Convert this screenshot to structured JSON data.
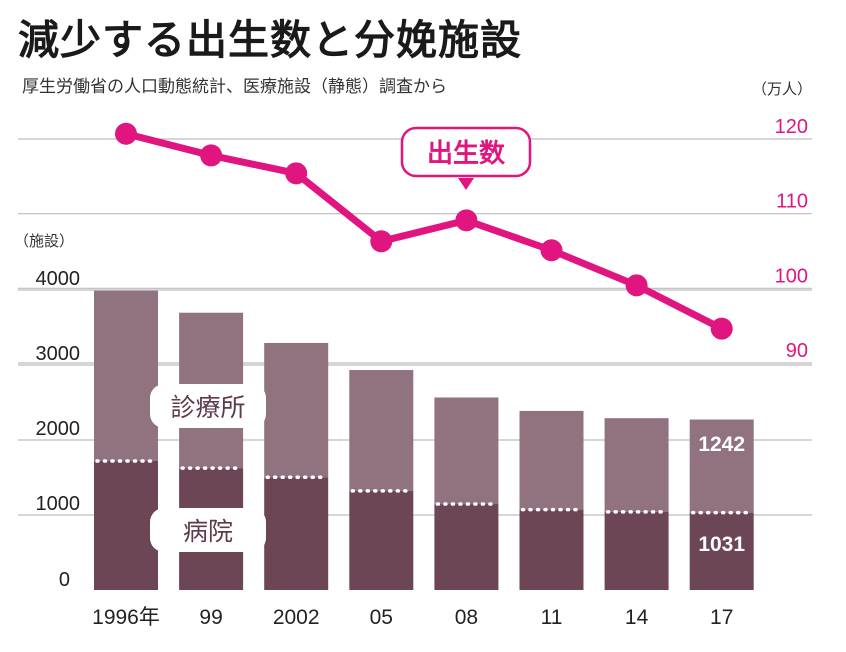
{
  "title": "減少する出生数と分娩施設",
  "subtitle": "厚生労働省の人口動態統計、医療施設（静態）調査から",
  "colors": {
    "clinic": "#91727f",
    "hospital": "#6d4656",
    "births": "#e0157f",
    "grid": "#bdbdbd"
  },
  "chart_data": [
    {
      "type": "bar",
      "stacked": true,
      "ylabel": "（施設）",
      "ylim": [
        0,
        4000
      ],
      "yticks": [
        "0",
        "1000",
        "2000",
        "3000",
        "4000"
      ],
      "categories": [
        "1996年",
        "99",
        "2002",
        "05",
        "08",
        "11",
        "14",
        "17"
      ],
      "series": [
        {
          "name": "病院",
          "values": [
            1720,
            1625,
            1503,
            1321,
            1146,
            1072,
            1041,
            1031
          ]
        },
        {
          "name": "診療所",
          "values": [
            2271,
            2072,
            1791,
            1612,
            1421,
            1316,
            1250,
            1242
          ]
        }
      ],
      "data_labels": {
        "last_hospital": "1031",
        "last_clinic": "1242"
      }
    },
    {
      "type": "line",
      "series": [
        {
          "name": "出生数",
          "values": [
            120.7,
            117.8,
            115.4,
            106.3,
            109.1,
            105.1,
            100.4,
            94.6
          ]
        }
      ],
      "y2label": "（万人）",
      "y2lim": [
        90,
        120
      ],
      "y2ticks": [
        "90",
        "100",
        "110",
        "120"
      ]
    }
  ]
}
